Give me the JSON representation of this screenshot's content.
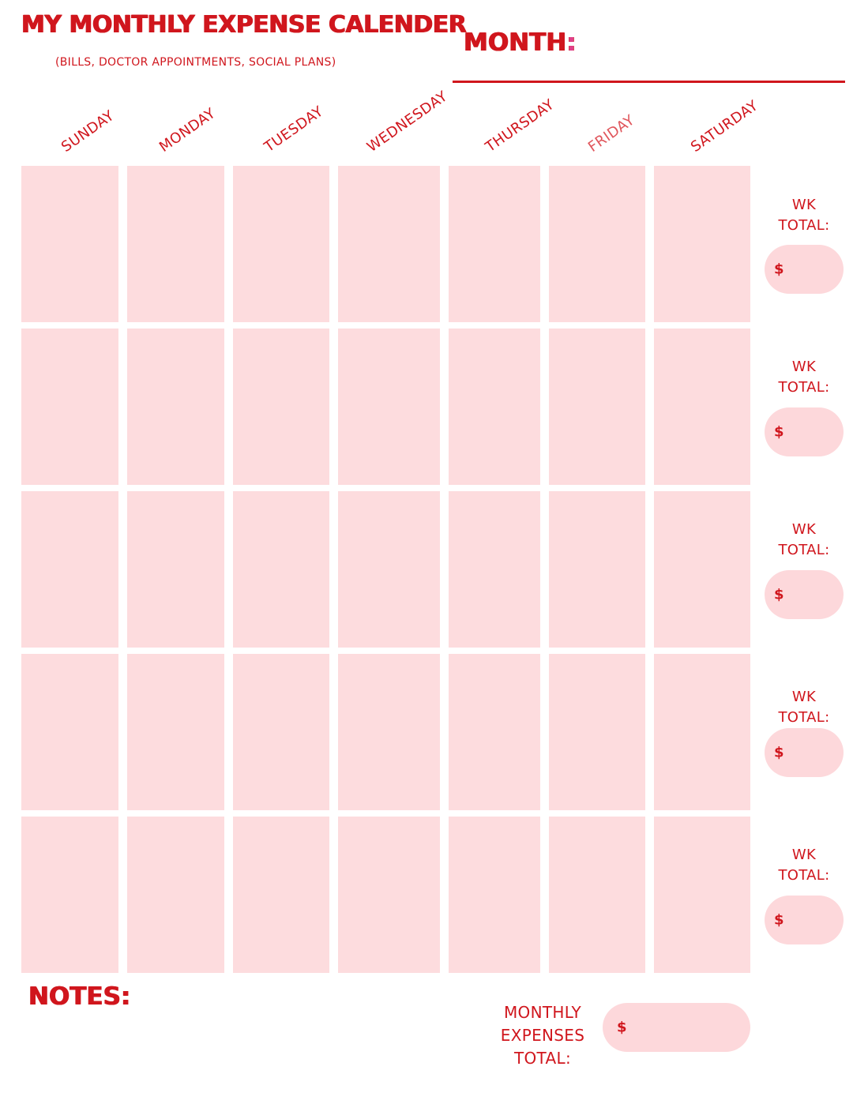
{
  "header": {
    "title": "MY MONTHLY EXPENSE CALENDER",
    "subtitle": "(BILLS, DOCTOR APPOINTMENTS, SOCIAL PLANS)",
    "month_label": "MONTH",
    "month_colon": ":"
  },
  "days": [
    "SUNDAY",
    "MONDAY",
    "TUESDAY",
    "WEDNESDAY",
    "THURSDAY",
    "FRIDAY",
    "SATURDAY"
  ],
  "weeks": [
    {
      "label_line1": "WK",
      "label_line2": "TOTAL:",
      "currency": "$"
    },
    {
      "label_line1": "WK",
      "label_line2": "TOTAL:",
      "currency": "$"
    },
    {
      "label_line1": "WK",
      "label_line2": "TOTAL:",
      "currency": "$"
    },
    {
      "label_line1": "WK",
      "label_line2": "TOTAL:",
      "currency": "$"
    },
    {
      "label_line1": "WK",
      "label_line2": "TOTAL:",
      "currency": "$"
    }
  ],
  "notes": {
    "label": "NOTES:"
  },
  "monthly_total": {
    "line1": "MONTHLY",
    "line2": "EXPENSES",
    "line3": "TOTAL:",
    "currency": "$"
  },
  "colors": {
    "accent_red": "#d0161d",
    "cell_pink": "#fddcde",
    "pill_pink": "#fdd8db",
    "colon_pink": "#e0408a"
  }
}
